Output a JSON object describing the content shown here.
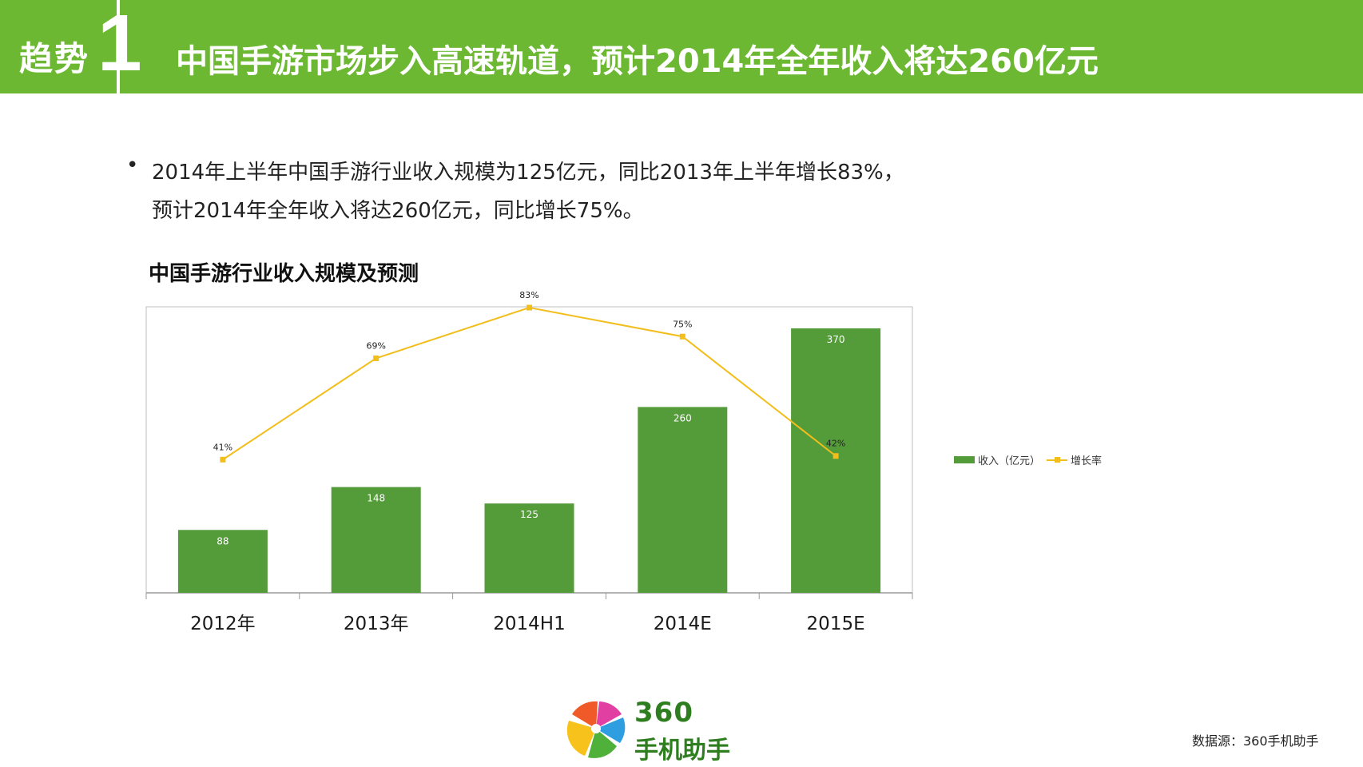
{
  "header": {
    "section_label": "趋势",
    "section_number": "1",
    "title": "中国手游市场步入高速轨道，预计2014年全年收入将达260亿元"
  },
  "bullet": {
    "line1": "2014年上半年中国手游行业收入规模为125亿元，同比2013年上半年增长83%，",
    "line2": "预计2014年全年收入将达260亿元，同比增长75%。"
  },
  "chart_data": {
    "type": "bar",
    "title": "中国手游行业收入规模及预测",
    "categories": [
      "2012年",
      "2013年",
      "2014H1",
      "2014E",
      "2015E"
    ],
    "series": [
      {
        "name": "收入（亿元）",
        "type": "bar",
        "values": [
          88,
          148,
          125,
          260,
          370
        ],
        "labels": [
          "88",
          "148",
          "125",
          "260",
          "370"
        ]
      },
      {
        "name": "增长率",
        "type": "line",
        "values": [
          41,
          69,
          83,
          75,
          42
        ],
        "labels": [
          "41%",
          "69%",
          "83%",
          "75%",
          "42%"
        ]
      }
    ],
    "ylim_bar": [
      0,
      370
    ],
    "ylim_line": [
      0,
      100
    ],
    "legend_position": "right",
    "grid": false,
    "colors": {
      "bar": "#549b3a",
      "line": "#f2be1b",
      "header": "#6cb832"
    }
  },
  "logo": {
    "number": "360",
    "name": "手机助手"
  },
  "footer": {
    "source": "数据源：360手机助手"
  }
}
